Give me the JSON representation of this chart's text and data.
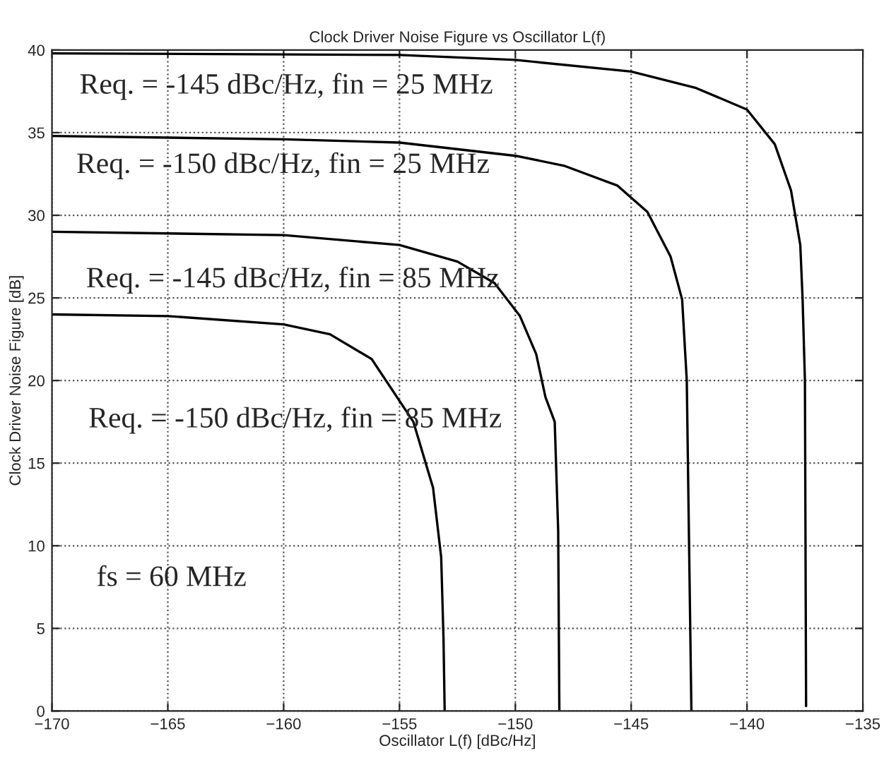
{
  "chart_data": {
    "type": "line",
    "title": "Clock Driver Noise Figure vs Oscillator L(f)",
    "xlabel": "Oscillator L(f) [dBc/Hz]",
    "ylabel": "Clock Driver Noise Figure [dB]",
    "series": [
      {
        "color": "#000000",
        "x": [
          -170,
          -155,
          -150,
          -145,
          -142.2,
          -140,
          -138.8,
          -138.1,
          -137.7,
          -137.6,
          -137.5,
          -137.45
        ],
        "values": [
          39.8,
          39.7,
          39.4,
          38.7,
          37.7,
          36.4,
          34.3,
          31.5,
          28.2,
          24.9,
          20,
          0.3
        ]
      },
      {
        "color": "#000000",
        "x": [
          -170,
          -160,
          -155,
          -150,
          -147.9,
          -145.6,
          -144.3,
          -143.3,
          -142.8,
          -142.6,
          -142.4
        ],
        "values": [
          34.8,
          34.6,
          34.4,
          33.6,
          33.0,
          31.8,
          30.2,
          27.5,
          24.9,
          20,
          0
        ]
      },
      {
        "color": "#000000",
        "x": [
          -170,
          -160,
          -155,
          -152.5,
          -150.9,
          -149.8,
          -149.1,
          -148.7,
          -148.3,
          -148.15,
          -148.1
        ],
        "values": [
          29.0,
          28.8,
          28.2,
          27.2,
          25.9,
          23.9,
          21.6,
          19.0,
          17.5,
          10.9,
          0
        ]
      },
      {
        "color": "#000000",
        "x": [
          -170,
          -165,
          -160,
          -158,
          -156.2,
          -154.4,
          -153.55,
          -153.2,
          -153.1,
          -153.05
        ],
        "values": [
          24.0,
          23.9,
          23.4,
          22.8,
          21.3,
          17.5,
          13.5,
          9.3,
          4.4,
          0
        ]
      }
    ],
    "annotations": [
      "Req. = -145 dBc/Hz, fin = 25 MHz",
      "Req. = -150 dBc/Hz, fin = 25 MHz",
      "Req. = -145 dBc/Hz, fin = 85 MHz",
      "Req. = -150 dBc/Hz, fin = 85 MHz",
      "fs = 60 MHz"
    ],
    "xlim": [
      -170,
      -135
    ],
    "ylim": [
      0,
      40
    ],
    "xticks": [
      -170,
      -165,
      -160,
      -155,
      -150,
      -145,
      -140,
      -135
    ],
    "yticks": [
      0,
      5,
      10,
      15,
      20,
      25,
      30,
      35,
      40
    ],
    "grid": true,
    "marker": "none",
    "line_style": "solid",
    "legend": false
  }
}
